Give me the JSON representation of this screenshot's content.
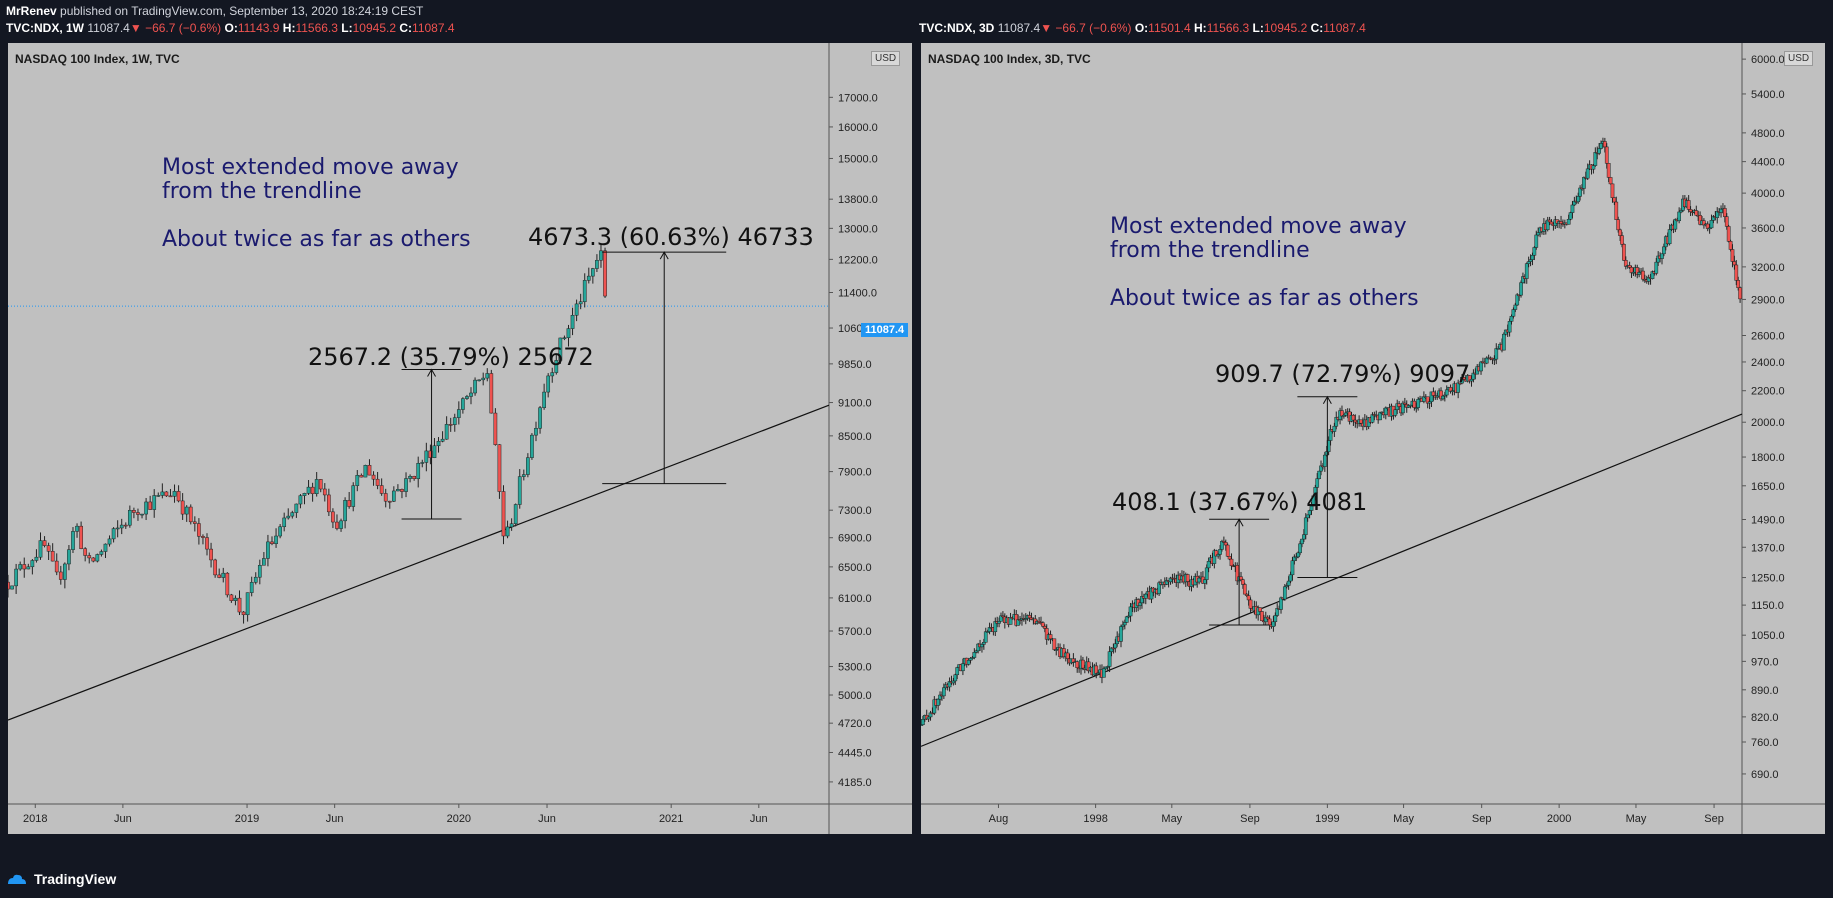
{
  "header": {
    "author": "MrRenev",
    "published_text": "published on TradingView.com, September 13, 2020 18:24:19 CEST"
  },
  "panels": [
    {
      "id": "left",
      "ohlc": {
        "symbol": "TVC:NDX, 1W",
        "price": "11087.4",
        "change": "−66.7 (−0.6%)",
        "o": "11143.9",
        "h": "11566.3",
        "l": "10945.2",
        "c": "11087.4"
      },
      "title": "NASDAQ 100 Index, 1W, TVC",
      "currency": "USD",
      "last_price_badge": "11087.4",
      "annotation": {
        "line1": "Most extended move away",
        "line2": "from the trendline",
        "line3": "About twice as far as others"
      },
      "measures": [
        "2567.2 (35.79%) 25672",
        "4673.3 (60.63%) 46733"
      ]
    },
    {
      "id": "right",
      "ohlc": {
        "symbol": "TVC:NDX, 3D",
        "price": "11087.4",
        "change": "−66.7 (−0.6%)",
        "o": "11501.4",
        "h": "11566.3",
        "l": "10945.2",
        "c": "11087.4"
      },
      "title": "NASDAQ 100 Index, 3D, TVC",
      "currency": "USD",
      "annotation": {
        "line1": "Most extended move away",
        "line2": "from the trendline",
        "line3": "About twice as far as others"
      },
      "measures": [
        "408.1 (37.67%) 4081",
        "909.7 (72.79%) 9097"
      ]
    }
  ],
  "footer": {
    "brand": "TradingView",
    "logo_icon": "tradingview-logo-icon"
  },
  "colors": {
    "background": "#131722",
    "panel": "#c0c0c0",
    "up_candle": "#26a69a",
    "down_candle": "#ef5350",
    "annotation": "#1a1a6e",
    "badge": "#2196f3"
  },
  "chart_data": [
    {
      "type": "candlestick",
      "title": "NASDAQ 100 Index, 1W, TVC",
      "scale": "log",
      "ylim": [
        4000,
        19000
      ],
      "y_ticks": [
        "17000.0",
        "16000.0",
        "15000.0",
        "13800.0",
        "13000.0",
        "12200.0",
        "11400.0",
        "10600.0",
        "9850.0",
        "9100.0",
        "8500.0",
        "7900.0",
        "7300.0",
        "6900.0",
        "6500.0",
        "6100.0",
        "5700.0",
        "5300.0",
        "5000.0",
        "4720.0",
        "4445.0",
        "4185.0"
      ],
      "x_labels": [
        "2018",
        "Jun",
        "2019",
        "Jun",
        "2020",
        "Jun",
        "2021",
        "Jun"
      ],
      "x_dates": [
        "2017-11-15",
        "2018-01-01",
        "2018-06-01",
        "2019-01-01",
        "2019-06-01",
        "2020-01-01",
        "2020-06-01",
        "2021-01-01",
        "2021-06-01",
        "2021-09-30"
      ],
      "close_path": [
        [
          "2017-11-15",
          6300
        ],
        [
          "2018-01-15",
          6800
        ],
        [
          "2018-02-09",
          6300
        ],
        [
          "2018-03-12",
          7100
        ],
        [
          "2018-04-02",
          6500
        ],
        [
          "2018-06-20",
          7300
        ],
        [
          "2018-08-29",
          7600
        ],
        [
          "2018-10-24",
          6700
        ],
        [
          "2018-12-24",
          5900
        ],
        [
          "2019-02-01",
          6700
        ],
        [
          "2019-05-03",
          7800
        ],
        [
          "2019-06-03",
          7100
        ],
        [
          "2019-07-26",
          8000
        ],
        [
          "2019-08-26",
          7500
        ],
        [
          "2019-10-01",
          7700
        ],
        [
          "2020-02-19",
          9700
        ],
        [
          "2020-03-20",
          6800
        ],
        [
          "2020-06-01",
          9600
        ],
        [
          "2020-09-01",
          12400
        ],
        [
          "2020-09-11",
          11087.4
        ]
      ],
      "trendline": [
        [
          "2017-11-15",
          4750
        ],
        [
          "2021-09-30",
          9050
        ]
      ],
      "measures": [
        {
          "label": "2567.2 (35.79%) 25672",
          "date": "2019-11-15",
          "from": 7170,
          "to": 9737
        },
        {
          "label": "4673.3 (60.63%) 46733",
          "date": "2020-12-20",
          "from": 7708,
          "to": 12381
        }
      ],
      "last_price": 11087.4
    },
    {
      "type": "candlestick",
      "title": "NASDAQ 100 Index, 3D, TVC",
      "scale": "log",
      "ylim": [
        630,
        6300
      ],
      "y_ticks": [
        "6000.0",
        "5400.0",
        "4800.0",
        "4400.0",
        "4000.0",
        "3600.0",
        "3200.0",
        "2900.0",
        "2600.0",
        "2400.0",
        "2200.0",
        "2000.0",
        "1800.0",
        "1650.0",
        "1490.0",
        "1370.0",
        "1250.0",
        "1150.0",
        "1050.0",
        "970.0",
        "890.0",
        "820.0",
        "760.0",
        "690.0"
      ],
      "x_labels": [
        "Aug",
        "1998",
        "May",
        "Sep",
        "1999",
        "May",
        "Sep",
        "2000",
        "May",
        "Sep"
      ],
      "x_dates": [
        "1997-04-01",
        "1997-08-01",
        "1998-01-01",
        "1998-05-01",
        "1998-09-01",
        "1999-01-01",
        "1999-05-01",
        "1999-09-01",
        "2000-01-01",
        "2000-05-01",
        "2000-09-01",
        "2000-10-15"
      ],
      "close_path": [
        [
          "1997-04-01",
          800
        ],
        [
          "1997-06-01",
          950
        ],
        [
          "1997-08-01",
          1100
        ],
        [
          "1997-10-01",
          1100
        ],
        [
          "1997-11-01",
          1000
        ],
        [
          "1998-01-10",
          930
        ],
        [
          "1998-03-01",
          1150
        ],
        [
          "1998-05-01",
          1250
        ],
        [
          "1998-06-15",
          1230
        ],
        [
          "1998-07-20",
          1400
        ],
        [
          "1998-08-31",
          1150
        ],
        [
          "1998-10-08",
          1080
        ],
        [
          "1998-12-01",
          1500
        ],
        [
          "1999-01-15",
          2050
        ],
        [
          "1999-03-01",
          2000
        ],
        [
          "1999-05-01",
          2100
        ],
        [
          "1999-07-15",
          2200
        ],
        [
          "1999-08-15",
          2300
        ],
        [
          "1999-10-01",
          2500
        ],
        [
          "1999-12-01",
          3600
        ],
        [
          "2000-01-15",
          3700
        ],
        [
          "2000-03-10",
          4700
        ],
        [
          "2000-04-14",
          3200
        ],
        [
          "2000-05-24",
          3100
        ],
        [
          "2000-07-15",
          3900
        ],
        [
          "2000-08-15",
          3600
        ],
        [
          "2000-09-15",
          3800
        ],
        [
          "2000-10-12",
          2900
        ]
      ],
      "trendline": [
        [
          "1997-04-01",
          750
        ],
        [
          "2000-10-15",
          2050
        ]
      ],
      "measures": [
        {
          "label": "408.1 (37.67%) 4081",
          "date": "1998-08-15",
          "from": 1083,
          "to": 1491
        },
        {
          "label": "909.7 (72.79%) 9097",
          "date": "1999-01-01",
          "from": 1250,
          "to": 2160
        }
      ]
    }
  ]
}
